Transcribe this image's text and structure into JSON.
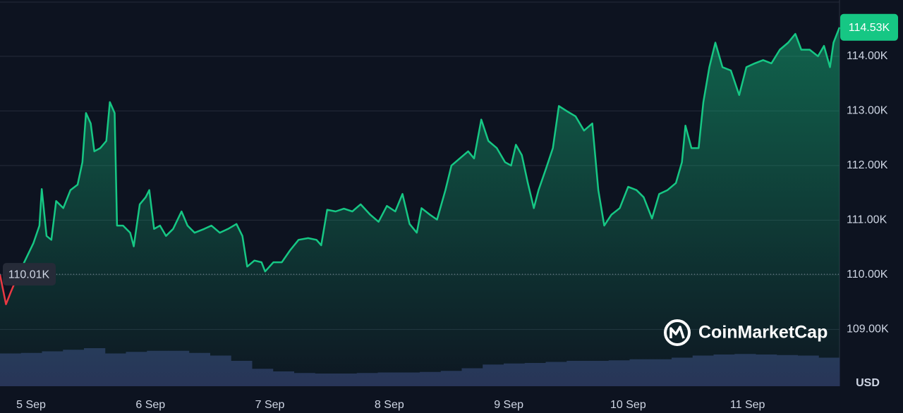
{
  "chart_data": {
    "type": "line",
    "x": [
      -0.26,
      -0.21,
      -0.17,
      -0.12,
      -0.05,
      0.02,
      0.07,
      0.09,
      0.13,
      0.17,
      0.21,
      0.27,
      0.33,
      0.39,
      0.43,
      0.46,
      0.5,
      0.53,
      0.58,
      0.63,
      0.66,
      0.7,
      0.72,
      0.77,
      0.83,
      0.86,
      0.91,
      0.96,
      0.99,
      1.03,
      1.08,
      1.13,
      1.19,
      1.26,
      1.31,
      1.37,
      1.45,
      1.51,
      1.58,
      1.65,
      1.72,
      1.77,
      1.81,
      1.87,
      1.93,
      1.96,
      2.03,
      2.1,
      2.17,
      2.24,
      2.32,
      2.39,
      2.43,
      2.48,
      2.55,
      2.62,
      2.69,
      2.76,
      2.84,
      2.91,
      2.98,
      3.05,
      3.11,
      3.17,
      3.23,
      3.27,
      3.34,
      3.4,
      3.47,
      3.52,
      3.59,
      3.66,
      3.71,
      3.77,
      3.83,
      3.9,
      3.97,
      4.02,
      4.06,
      4.11,
      4.16,
      4.21,
      4.25,
      4.31,
      4.37,
      4.42,
      4.49,
      4.56,
      4.63,
      4.7,
      4.75,
      4.8,
      4.86,
      4.93,
      5.0,
      5.07,
      5.13,
      5.2,
      5.26,
      5.33,
      5.4,
      5.45,
      5.48,
      5.53,
      5.59,
      5.63,
      5.68,
      5.73,
      5.79,
      5.86,
      5.93,
      5.99,
      6.06,
      6.13,
      6.2,
      6.27,
      6.34,
      6.4,
      6.45,
      6.52,
      6.59,
      6.64,
      6.69,
      6.72,
      6.77
    ],
    "values": [
      110.0,
      109.46,
      109.68,
      109.94,
      110.26,
      110.58,
      110.9,
      111.57,
      110.71,
      110.64,
      111.35,
      111.22,
      111.55,
      111.65,
      112.06,
      112.96,
      112.77,
      112.26,
      112.32,
      112.45,
      113.16,
      112.96,
      110.9,
      110.9,
      110.77,
      110.52,
      111.29,
      111.42,
      111.55,
      110.84,
      110.9,
      110.71,
      110.84,
      111.16,
      110.9,
      110.77,
      110.84,
      110.9,
      110.77,
      110.84,
      110.93,
      110.71,
      110.15,
      110.26,
      110.23,
      110.06,
      110.23,
      110.23,
      110.45,
      110.64,
      110.67,
      110.64,
      110.54,
      111.19,
      111.16,
      111.21,
      111.16,
      111.29,
      111.1,
      110.97,
      111.26,
      111.16,
      111.48,
      110.93,
      110.77,
      111.22,
      111.1,
      111.01,
      111.55,
      112.0,
      112.13,
      112.26,
      112.13,
      112.84,
      112.45,
      112.32,
      112.06,
      112.0,
      112.38,
      112.19,
      111.68,
      111.22,
      111.55,
      111.93,
      112.32,
      113.09,
      112.99,
      112.9,
      112.64,
      112.77,
      111.55,
      110.9,
      111.1,
      111.22,
      111.61,
      111.55,
      111.42,
      111.03,
      111.48,
      111.55,
      111.68,
      112.06,
      112.73,
      112.32,
      112.32,
      113.16,
      113.8,
      114.25,
      113.8,
      113.74,
      113.29,
      113.8,
      113.87,
      113.93,
      113.87,
      114.12,
      114.25,
      114.41,
      114.12,
      114.12,
      114.0,
      114.19,
      113.8,
      114.25,
      114.53
    ],
    "color": "#16c784",
    "color_below": "#ea3943",
    "xlim": [
      -0.26,
      6.77
    ],
    "xticks": [
      {
        "value": 0,
        "label": "5 Sep"
      },
      {
        "value": 1,
        "label": "6 Sep"
      },
      {
        "value": 2,
        "label": "7 Sep"
      },
      {
        "value": 3,
        "label": "8 Sep"
      },
      {
        "value": 4,
        "label": "9 Sep"
      },
      {
        "value": 5,
        "label": "10 Sep"
      },
      {
        "value": 6,
        "label": "11 Sep"
      }
    ],
    "ylim": [
      107.96,
      115.03
    ],
    "yticks": [
      {
        "value": 109,
        "label": "109.00K"
      },
      {
        "value": 110,
        "label": "110.00K"
      },
      {
        "value": 111,
        "label": "111.00K"
      },
      {
        "value": 112,
        "label": "112.00K"
      },
      {
        "value": 113,
        "label": "113.00K"
      },
      {
        "value": 114,
        "label": "114.00K"
      }
    ],
    "y_unit": "USD",
    "grid": true,
    "reference": {
      "value": 110.01,
      "label": "110.01K"
    },
    "current": {
      "value": 114.53,
      "label": "114.53K"
    },
    "volume": {
      "values": [
        62,
        63,
        66,
        69,
        72,
        62,
        65,
        67,
        67,
        63,
        58,
        48,
        33,
        28,
        25,
        24,
        24,
        25,
        26,
        26,
        27,
        29,
        34,
        41,
        43,
        44,
        46,
        48,
        48,
        49,
        51,
        51,
        54,
        58,
        60,
        61,
        60,
        59,
        58,
        54
      ],
      "lim": [
        0,
        100
      ],
      "color": "#283257"
    },
    "watermark": "CoinMarketCap"
  }
}
